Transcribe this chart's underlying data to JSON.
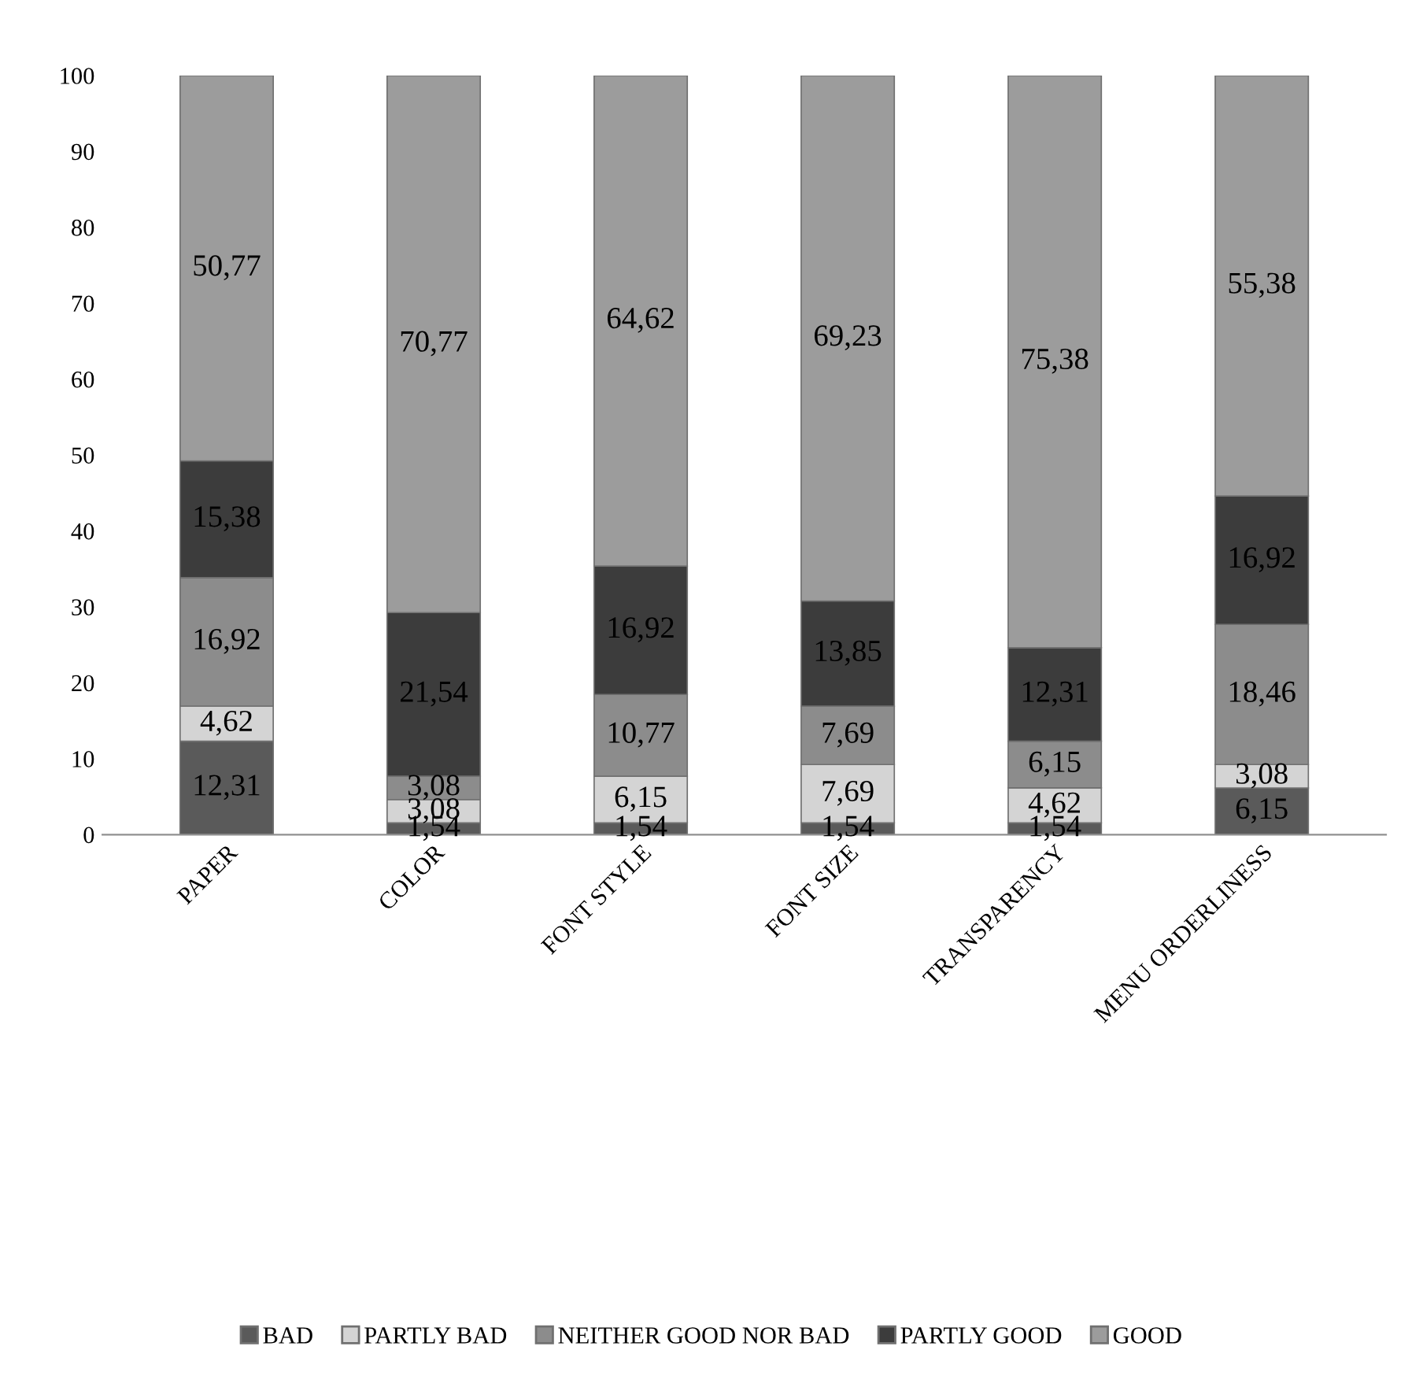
{
  "chart_data": {
    "type": "bar",
    "stacked": true,
    "categories": [
      "PAPER",
      "COLOR",
      "FONT STYLE",
      "FONT SIZE",
      "TRANSPARENCY",
      "MENU ORDERLINESS"
    ],
    "series": [
      {
        "name": "BAD",
        "color": "#5a5a5a",
        "values": [
          12.31,
          1.54,
          1.54,
          1.54,
          1.54,
          6.15
        ],
        "value_labels": [
          "12,31",
          "1,54",
          "1,54",
          "1,54",
          "1,54",
          "6,15"
        ]
      },
      {
        "name": "PARTLY BAD",
        "color": "#d4d4d4",
        "values": [
          4.62,
          3.08,
          6.15,
          7.69,
          4.62,
          3.08
        ],
        "value_labels": [
          "4,62",
          "3,08",
          "6,15",
          "7,69",
          "4,62",
          "3,08"
        ]
      },
      {
        "name": "NEITHER GOOD NOR BAD",
        "color": "#8c8c8c",
        "values": [
          16.92,
          3.08,
          10.77,
          7.69,
          6.15,
          18.46
        ],
        "value_labels": [
          "16,92",
          "3,08",
          "10,77",
          "7,69",
          "6,15",
          "18,46"
        ]
      },
      {
        "name": "PARTLY GOOD",
        "color": "#3c3c3c",
        "values": [
          15.38,
          21.54,
          16.92,
          13.85,
          12.31,
          16.92
        ],
        "value_labels": [
          "15,38",
          "21,54",
          "16,92",
          "13,85",
          "12,31",
          "16,92"
        ]
      },
      {
        "name": "GOOD",
        "color": "#9c9c9c",
        "values": [
          50.77,
          70.77,
          64.62,
          69.23,
          75.38,
          55.38
        ],
        "value_labels": [
          "50,77",
          "70,77",
          "64,62",
          "69,23",
          "75,38",
          "55,38"
        ]
      }
    ],
    "ylim": [
      0,
      100
    ],
    "yticks": [
      0,
      10,
      20,
      30,
      40,
      50,
      60,
      70,
      80,
      90,
      100
    ],
    "grid": false,
    "legend": "bottom"
  }
}
